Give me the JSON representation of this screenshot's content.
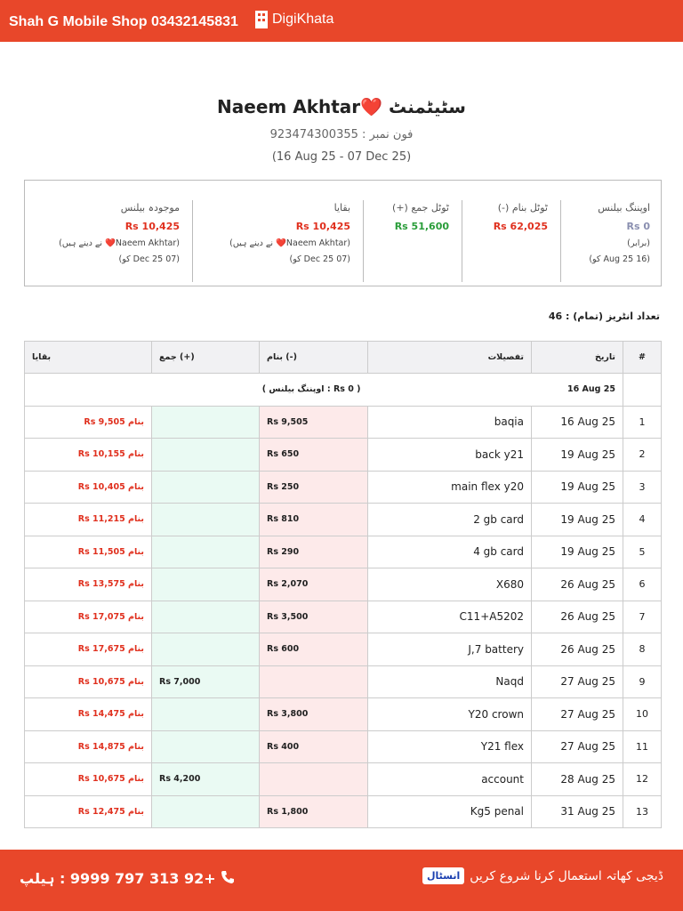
{
  "header": {
    "shop": "Shah G Mobile Shop 03432145831",
    "brand": "DigiKhata"
  },
  "statement": {
    "name": "Naeem Akhtar❤️",
    "title": "سٹیٹمنٹ",
    "phone": "فون نمبر : 923474300355",
    "period": "(16 Aug 25 - 07 Dec 25)"
  },
  "summary": [
    {
      "label": "اوپننگ بیلنس",
      "amount": "Rs 0",
      "note": "(برابر)",
      "date": "(16 Aug 25 کو)"
    },
    {
      "label": "ٹوٹل بنام (-)",
      "amount": "Rs 62,025"
    },
    {
      "label": "ٹوٹل جمع (+)",
      "amount": "Rs 51,600"
    },
    {
      "label": "بقایا",
      "amount": "Rs 10,425",
      "note": "(Naeem Akhtar❤️ نے دینے ہیں)",
      "date": "(07 Dec 25 کو)"
    },
    {
      "label": "موجودہ بیلنس",
      "amount": "Rs 10,425",
      "note": "(Naeem Akhtar❤️ نے دینے ہیں)",
      "date": "(07 Dec 25 کو)"
    }
  ],
  "entries_count": "تعداد انٹریز (تمام) : 46",
  "table": {
    "headers": [
      "#",
      "تاریخ",
      "تفصیلات",
      "بنام (-)",
      "جمع (+)",
      "بقایا"
    ],
    "opening": {
      "date": "16 Aug 25",
      "text": "( Rs 0 : اوپننگ بیلنس )"
    },
    "rows": [
      [
        "1",
        "16 Aug 25",
        "baqia",
        "Rs 9,505",
        null,
        "بنام Rs 9,505"
      ],
      [
        "2",
        "19 Aug 25",
        "back y21",
        "Rs 650",
        null,
        "بنام Rs 10,155"
      ],
      [
        "3",
        "19 Aug 25",
        "main flex y20",
        "Rs 250",
        null,
        "بنام Rs 10,405"
      ],
      [
        "4",
        "19 Aug 25",
        "2 gb card",
        "Rs 810",
        null,
        "بنام Rs 11,215"
      ],
      [
        "5",
        "19 Aug 25",
        "4 gb card",
        "Rs 290",
        null,
        "بنام Rs 11,505"
      ],
      [
        "6",
        "26 Aug 25",
        "X680",
        "Rs 2,070",
        null,
        "بنام Rs 13,575"
      ],
      [
        "7",
        "26 Aug 25",
        "C11+A5202",
        "Rs 3,500",
        null,
        "بنام Rs 17,075"
      ],
      [
        "8",
        "26 Aug 25",
        "J,7 battery",
        "Rs 600",
        null,
        "بنام Rs 17,675"
      ],
      [
        "9",
        "27 Aug 25",
        "Naqd",
        null,
        "Rs 7,000",
        "بنام Rs 10,675"
      ],
      [
        "10",
        "27 Aug 25",
        "Y20 crown",
        "Rs 3,800",
        null,
        "بنام Rs 14,475"
      ],
      [
        "11",
        "27 Aug 25",
        "Y21 flex",
        "Rs 400",
        null,
        "بنام Rs 14,875"
      ],
      [
        "12",
        "28 Aug 25",
        "account",
        null,
        "Rs 4,200",
        "بنام Rs 10,675"
      ],
      [
        "13",
        "31 Aug 25",
        "Kg5 penal",
        "Rs 1,800",
        null,
        "بنام Rs 12,475"
      ]
    ]
  },
  "footer": {
    "help": "+92 313 797 9999 : ہیلپ",
    "cta": "ڈیجی کھاتہ استعمال کرنا شروع کریں",
    "install": "انسٹال"
  }
}
